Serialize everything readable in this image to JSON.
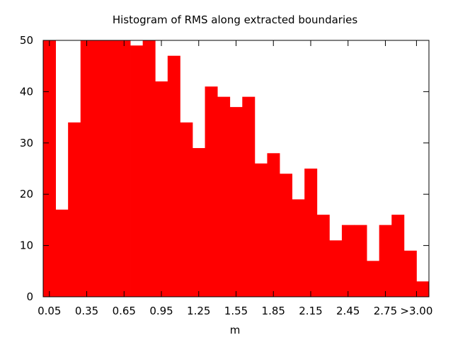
{
  "chart_data": {
    "type": "bar",
    "title": "Histogram of RMS along extracted boundaries",
    "xlabel": "m",
    "ylabel": "",
    "ylim": [
      0,
      50
    ],
    "yticks": [
      0,
      10,
      20,
      30,
      40,
      50
    ],
    "xtick_labels": [
      "0.05",
      "0.35",
      "0.65",
      "0.95",
      "1.25",
      "1.55",
      "1.85",
      "2.15",
      "2.45",
      "2.75",
      ">3.00"
    ],
    "xtick_positions": [
      0.05,
      0.35,
      0.65,
      0.95,
      1.25,
      1.55,
      1.85,
      2.15,
      2.45,
      2.75,
      3.0
    ],
    "bin_width": 0.1,
    "bin_centers": [
      0.05,
      0.15,
      0.25,
      0.35,
      0.45,
      0.55,
      0.65,
      0.75,
      0.85,
      0.95,
      1.05,
      1.15,
      1.25,
      1.35,
      1.45,
      1.55,
      1.65,
      1.75,
      1.85,
      1.95,
      2.05,
      2.15,
      2.25,
      2.35,
      2.45,
      2.55,
      2.65,
      2.75,
      2.85,
      2.95,
      3.05
    ],
    "values": [
      50,
      17,
      34,
      50,
      50,
      50,
      50,
      49,
      50,
      42,
      47,
      34,
      29,
      41,
      39,
      37,
      39,
      26,
      28,
      24,
      19,
      25,
      16,
      11,
      14,
      14,
      7,
      14,
      16,
      9,
      3
    ],
    "bar_color": "#ff0000",
    "grid": false,
    "legend": "none"
  }
}
